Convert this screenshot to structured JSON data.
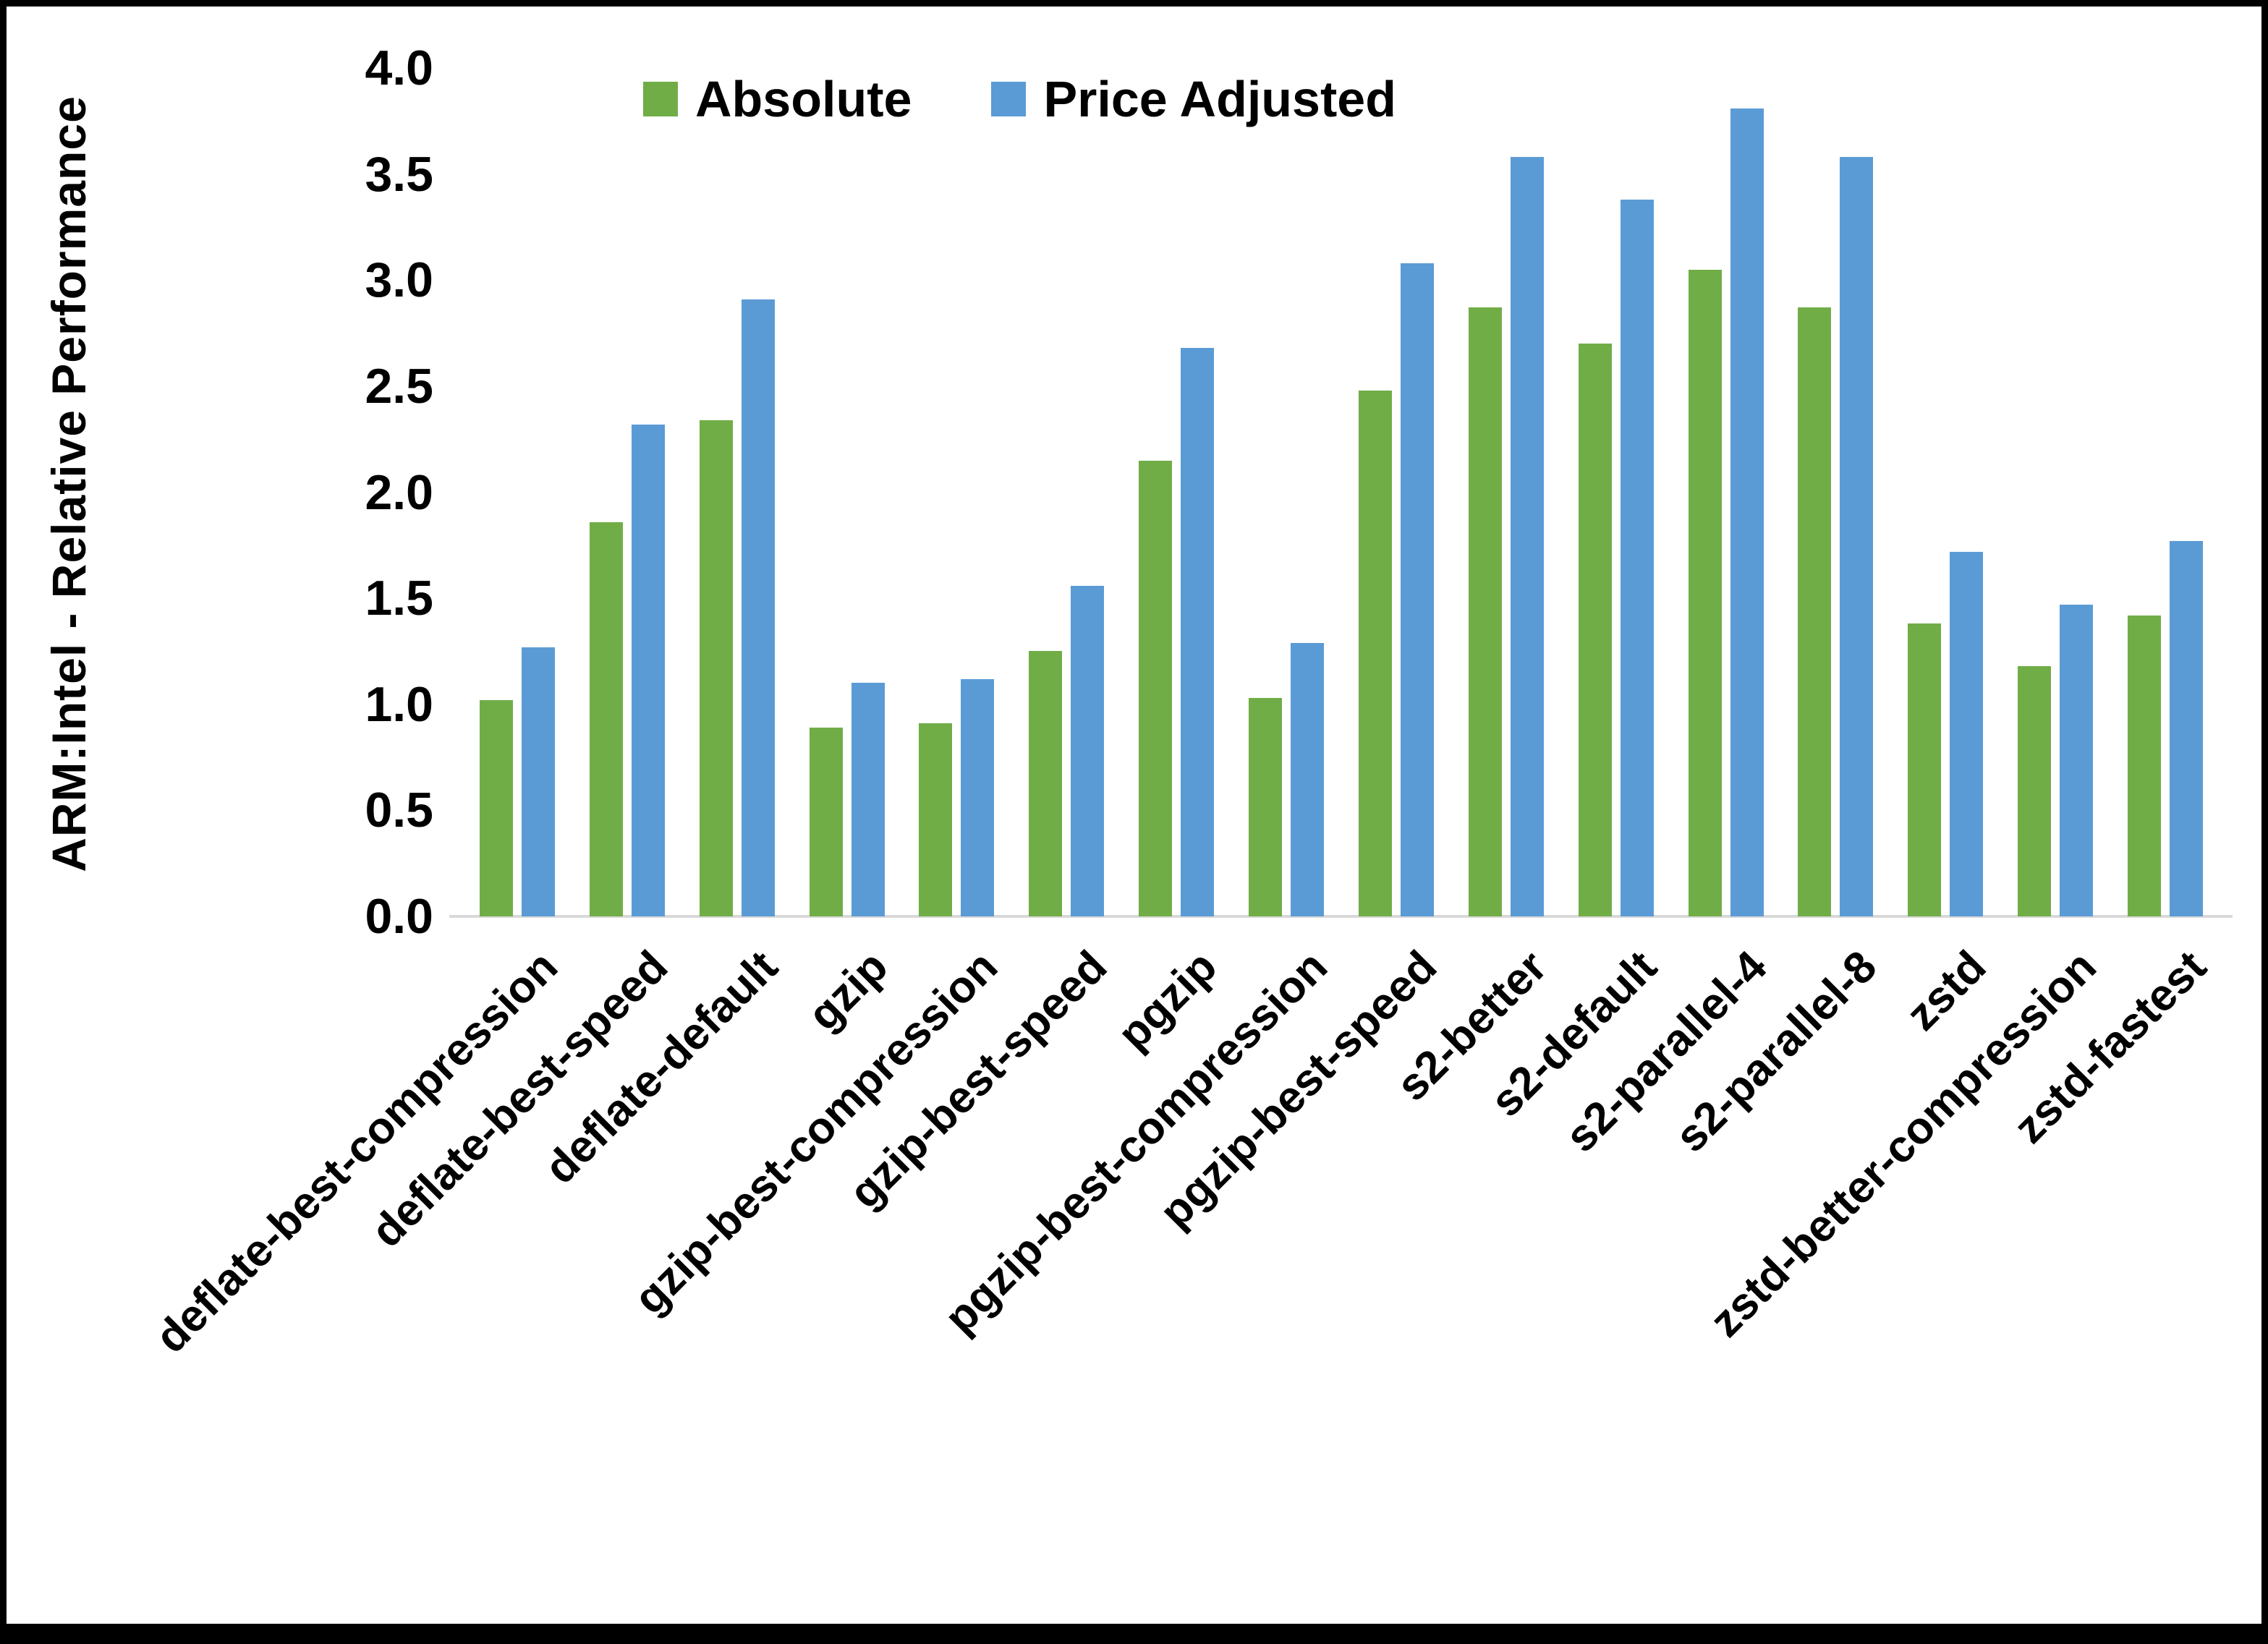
{
  "chart_data": {
    "type": "bar",
    "title": "",
    "xlabel": "",
    "ylabel": "ARM:Intel - Relative Performance",
    "ylim": [
      0,
      4.0
    ],
    "ytick_labels": [
      "0.0",
      "0.5",
      "1.0",
      "1.5",
      "2.0",
      "2.5",
      "3.0",
      "3.5",
      "4.0"
    ],
    "grid": false,
    "legend_position": "top-center",
    "categories": [
      "deflate-best-compression",
      "deflate-best-speed",
      "deflate-default",
      "gzip",
      "gzip-best-compression",
      "gzip-best-speed",
      "pgzip",
      "pgzip-best-compression",
      "pgzip-best-speed",
      "s2-better",
      "s2-default",
      "s2-parallel-4",
      "s2-parallel-8",
      "zstd",
      "zstd-better-compression",
      "zstd-fastest"
    ],
    "series": [
      {
        "name": "Absolute",
        "color": "#70AD47",
        "values": [
          1.02,
          1.86,
          2.34,
          0.89,
          0.91,
          1.25,
          2.15,
          1.03,
          2.48,
          2.87,
          2.7,
          3.05,
          2.87,
          1.38,
          1.18,
          1.42
        ]
      },
      {
        "name": "Price Adjusted",
        "color": "#5B9BD5",
        "values": [
          1.27,
          2.32,
          2.91,
          1.1,
          1.12,
          1.56,
          2.68,
          1.29,
          3.08,
          3.58,
          3.38,
          3.81,
          3.58,
          1.72,
          1.47,
          1.77
        ]
      }
    ]
  }
}
